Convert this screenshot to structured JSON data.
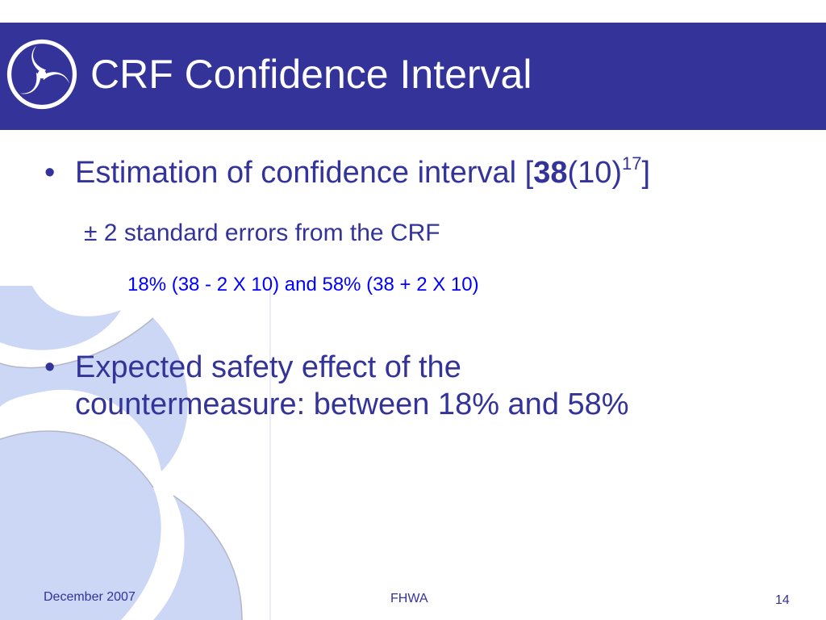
{
  "slide": {
    "title": "CRF Confidence Interval"
  },
  "content": {
    "bullet1": {
      "marker": "•",
      "prefix": "Estimation of confidence interval [",
      "bold": "38",
      "middle": "(10)",
      "superscript": "17",
      "suffix": "]"
    },
    "sub1": "± 2 standard errors from the CRF",
    "sub2": "18% (38 - 2 X 10) and 58% (38 + 2 X 10)",
    "bullet2": {
      "marker": "•",
      "line1": "Expected safety effect of the",
      "line2": "countermeasure: between 18% and 58%"
    }
  },
  "footer": {
    "date": "December 2007",
    "organization": "FHWA",
    "page_number": "14"
  },
  "colors": {
    "title_bar": "#333399",
    "body_text": "#333399",
    "sub_text": "#0000ff",
    "watermark": "#ccd6f5",
    "logo": "#ffffff"
  },
  "icons": {
    "logo": "dot-tri-swirl-logo",
    "watermark": "dot-tri-swirl-watermark"
  }
}
